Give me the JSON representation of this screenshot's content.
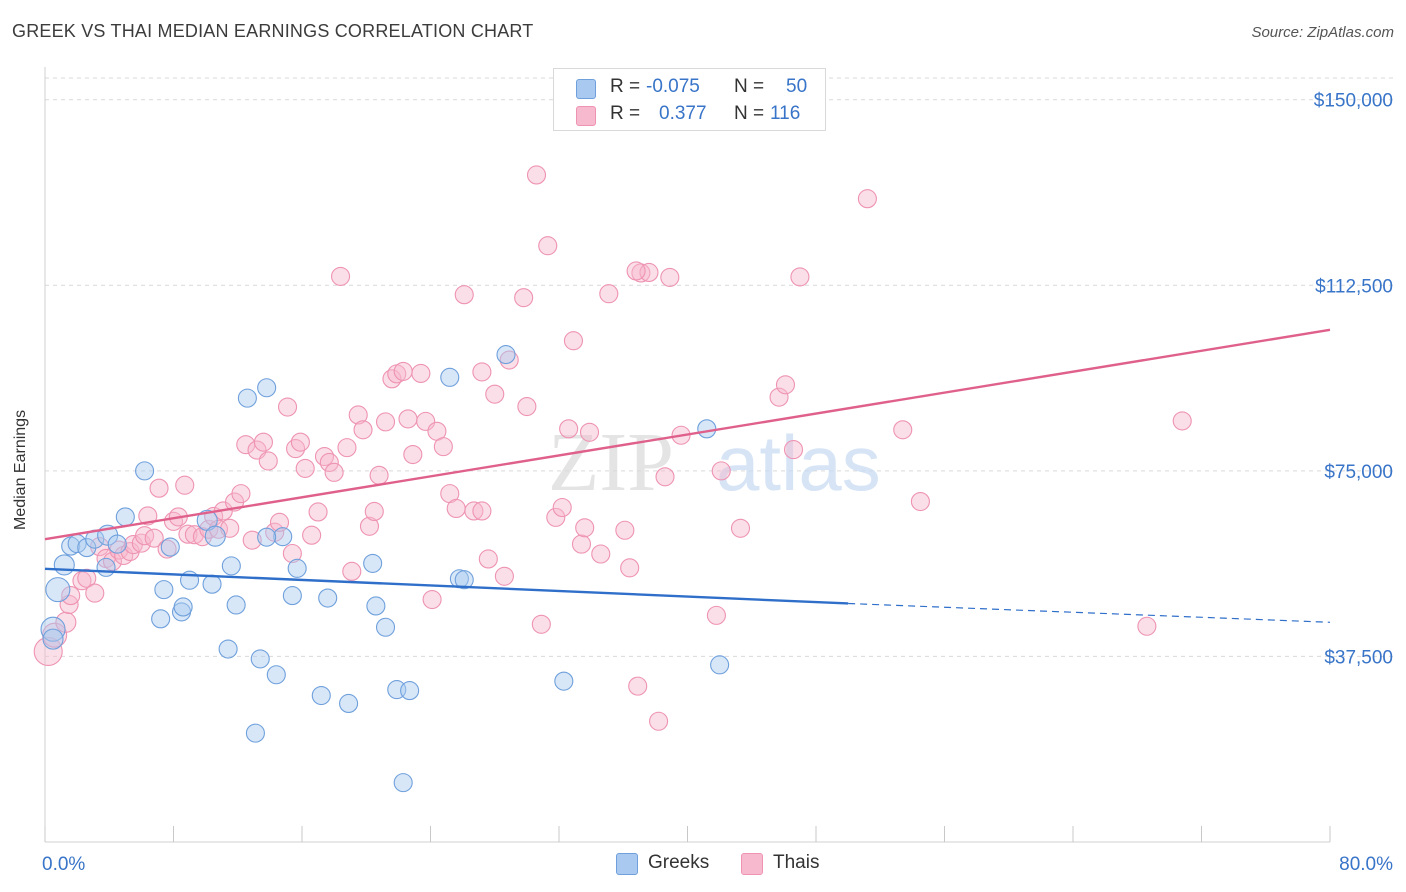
{
  "header": {
    "title": "GREEK VS THAI MEDIAN EARNINGS CORRELATION CHART",
    "source": "Source: ZipAtlas.com"
  },
  "watermark": {
    "part1": "ZIP",
    "part2": "atlas"
  },
  "legend_top": {
    "rows": [
      {
        "r_label": "R =",
        "r_value": "-0.075",
        "n_label": "N =",
        "n_value": "50",
        "color": "#a9c9f0"
      },
      {
        "r_label": "R =",
        "r_value": "0.377",
        "n_label": "N =",
        "n_value": "116",
        "color": "#f7b9cd"
      }
    ]
  },
  "legend_bottom": {
    "items": [
      {
        "label": "Greeks",
        "color": "#a9c9f0"
      },
      {
        "label": "Thais",
        "color": "#f7b9cd"
      }
    ]
  },
  "colors": {
    "greeks_fill": "#a9c9f0",
    "greeks_stroke": "#6fa0dc",
    "greeks_line": "#2f6fca",
    "thais_fill": "#f7b9cd",
    "thais_stroke": "#ee93b2",
    "thais_line": "#e0608c",
    "axis_text": "#3874c8",
    "grid": "#d9d9d9"
  },
  "chart_data": {
    "type": "scatter",
    "title": "GREEK VS THAI MEDIAN EARNINGS CORRELATION CHART",
    "xlabel": "",
    "ylabel": "Median Earnings",
    "xlim": [
      0,
      80
    ],
    "ylim": [
      0,
      155000
    ],
    "x_tick_labels": [
      "0.0%",
      "80.0%"
    ],
    "y_ticks": [
      37500,
      75000,
      112500,
      150000
    ],
    "y_tick_labels": [
      "$37,500",
      "$75,000",
      "$112,500",
      "$150,000"
    ],
    "grid": true,
    "legend_position": "bottom",
    "series": [
      {
        "name": "Greeks",
        "r": -0.075,
        "n": 50,
        "trend": {
          "x_start": 0,
          "y_start": 55200,
          "x_solid_end": 50,
          "y_solid_end": 48200,
          "x_end": 80,
          "y_end": 44400
        },
        "points": [
          [
            0.5,
            43000,
            10
          ],
          [
            0.5,
            41000,
            8
          ],
          [
            0.8,
            51000,
            10
          ],
          [
            1.2,
            56000,
            8
          ],
          [
            1.6,
            59800,
            7
          ],
          [
            2.0,
            60300,
            7
          ],
          [
            2.6,
            59500,
            7
          ],
          [
            3.1,
            61200,
            7
          ],
          [
            3.8,
            55500,
            7
          ],
          [
            3.9,
            62000,
            8
          ],
          [
            4.5,
            60200,
            7
          ],
          [
            5.0,
            65700,
            7
          ],
          [
            6.2,
            75000,
            7
          ],
          [
            7.2,
            45100,
            7
          ],
          [
            7.4,
            51000,
            7
          ],
          [
            7.8,
            59600,
            7
          ],
          [
            8.5,
            46500,
            7
          ],
          [
            8.6,
            47500,
            7
          ],
          [
            9.0,
            52900,
            7
          ],
          [
            10.1,
            65000,
            8
          ],
          [
            10.4,
            52100,
            7
          ],
          [
            10.6,
            61800,
            8
          ],
          [
            11.4,
            39000,
            7
          ],
          [
            11.6,
            55800,
            7
          ],
          [
            11.9,
            47900,
            7
          ],
          [
            12.6,
            89700,
            7
          ],
          [
            13.1,
            22000,
            7
          ],
          [
            13.4,
            37000,
            7
          ],
          [
            13.8,
            91800,
            7
          ],
          [
            14.4,
            33800,
            7
          ],
          [
            14.8,
            61700,
            7
          ],
          [
            15.4,
            49800,
            7
          ],
          [
            15.7,
            55300,
            7
          ],
          [
            17.2,
            29600,
            7
          ],
          [
            17.6,
            49300,
            7
          ],
          [
            18.9,
            28000,
            7
          ],
          [
            20.4,
            56300,
            7
          ],
          [
            20.6,
            47700,
            7
          ],
          [
            21.2,
            43400,
            7
          ],
          [
            21.9,
            30800,
            7
          ],
          [
            22.3,
            12000,
            7
          ],
          [
            22.7,
            30600,
            7
          ],
          [
            25.2,
            93900,
            7
          ],
          [
            25.8,
            53200,
            7
          ],
          [
            26.1,
            53000,
            7
          ],
          [
            28.7,
            98500,
            7
          ],
          [
            32.3,
            32500,
            7
          ],
          [
            41.2,
            83500,
            7
          ],
          [
            42.0,
            35800,
            7
          ],
          [
            13.8,
            61600,
            7
          ]
        ]
      },
      {
        "name": "Thais",
        "r": 0.377,
        "n": 116,
        "trend": {
          "x_start": 0,
          "y_start": 61200,
          "x_end": 80,
          "y_end": 103500
        },
        "points": [
          [
            0.2,
            38500,
            12
          ],
          [
            0.6,
            41800,
            10
          ],
          [
            1.3,
            44400,
            8
          ],
          [
            1.5,
            48000,
            7
          ],
          [
            1.6,
            49800,
            7
          ],
          [
            2.3,
            52800,
            7
          ],
          [
            2.6,
            53300,
            7
          ],
          [
            3.1,
            50300,
            7
          ],
          [
            3.4,
            59700,
            7
          ],
          [
            3.8,
            57300,
            7
          ],
          [
            4.2,
            56700,
            7
          ],
          [
            4.6,
            59000,
            7
          ],
          [
            4.9,
            57900,
            7
          ],
          [
            5.3,
            58700,
            7
          ],
          [
            5.5,
            60100,
            7
          ],
          [
            6.0,
            60400,
            7
          ],
          [
            6.2,
            61900,
            7
          ],
          [
            6.4,
            65900,
            7
          ],
          [
            6.8,
            61400,
            7
          ],
          [
            7.1,
            71500,
            7
          ],
          [
            7.6,
            59200,
            7
          ],
          [
            8.0,
            64800,
            7
          ],
          [
            8.3,
            65700,
            7
          ],
          [
            8.7,
            72100,
            7
          ],
          [
            8.9,
            62200,
            7
          ],
          [
            9.3,
            62100,
            7
          ],
          [
            9.8,
            61700,
            7
          ],
          [
            10.2,
            63200,
            7
          ],
          [
            10.5,
            65800,
            7
          ],
          [
            10.8,
            63200,
            7
          ],
          [
            11.1,
            66900,
            7
          ],
          [
            11.5,
            63400,
            7
          ],
          [
            11.8,
            68700,
            7
          ],
          [
            12.2,
            70400,
            7
          ],
          [
            12.5,
            80300,
            7
          ],
          [
            12.9,
            61000,
            7
          ],
          [
            13.2,
            79200,
            7
          ],
          [
            13.6,
            80800,
            7
          ],
          [
            13.9,
            77000,
            7
          ],
          [
            14.3,
            62600,
            7
          ],
          [
            14.6,
            64600,
            7
          ],
          [
            15.1,
            87900,
            7
          ],
          [
            15.4,
            58300,
            7
          ],
          [
            15.6,
            79500,
            7
          ],
          [
            15.9,
            80800,
            7
          ],
          [
            16.2,
            75500,
            7
          ],
          [
            16.6,
            62000,
            7
          ],
          [
            17.0,
            66700,
            7
          ],
          [
            17.4,
            77900,
            7
          ],
          [
            17.7,
            76700,
            7
          ],
          [
            18.0,
            74700,
            7
          ],
          [
            18.4,
            114300,
            7
          ],
          [
            18.8,
            79700,
            7
          ],
          [
            19.1,
            54700,
            7
          ],
          [
            19.5,
            86300,
            7
          ],
          [
            19.8,
            83300,
            7
          ],
          [
            20.2,
            63800,
            7
          ],
          [
            20.5,
            66800,
            7
          ],
          [
            20.8,
            74100,
            7
          ],
          [
            21.2,
            84900,
            7
          ],
          [
            21.6,
            93600,
            7
          ],
          [
            21.9,
            94600,
            7
          ],
          [
            22.3,
            95100,
            7
          ],
          [
            22.6,
            85500,
            7
          ],
          [
            22.9,
            78300,
            7
          ],
          [
            23.4,
            94700,
            7
          ],
          [
            23.7,
            85000,
            7
          ],
          [
            24.1,
            49000,
            7
          ],
          [
            24.4,
            83000,
            7
          ],
          [
            24.8,
            79900,
            7
          ],
          [
            25.2,
            70400,
            7
          ],
          [
            25.6,
            67400,
            7
          ],
          [
            26.1,
            110600,
            7
          ],
          [
            26.7,
            66900,
            7
          ],
          [
            27.2,
            95000,
            7
          ],
          [
            27.6,
            57200,
            7
          ],
          [
            28.0,
            90500,
            7
          ],
          [
            28.6,
            53700,
            7
          ],
          [
            28.9,
            97400,
            7
          ],
          [
            29.8,
            110000,
            7
          ],
          [
            30.0,
            88000,
            7
          ],
          [
            30.6,
            134800,
            7
          ],
          [
            30.9,
            44000,
            7
          ],
          [
            31.3,
            120500,
            7
          ],
          [
            31.8,
            65600,
            7
          ],
          [
            32.2,
            67600,
            7
          ],
          [
            32.6,
            83500,
            7
          ],
          [
            32.9,
            101300,
            7
          ],
          [
            33.4,
            60200,
            7
          ],
          [
            33.6,
            63500,
            7
          ],
          [
            33.9,
            82800,
            7
          ],
          [
            34.6,
            58200,
            7
          ],
          [
            35.1,
            110800,
            7
          ],
          [
            36.1,
            63000,
            7
          ],
          [
            36.4,
            55400,
            7
          ],
          [
            36.9,
            31500,
            7
          ],
          [
            37.1,
            115000,
            7
          ],
          [
            37.6,
            115100,
            7
          ],
          [
            38.2,
            24400,
            7
          ],
          [
            38.6,
            73800,
            7
          ],
          [
            38.9,
            114100,
            7
          ],
          [
            39.6,
            82200,
            7
          ],
          [
            41.8,
            45800,
            7
          ],
          [
            43.3,
            63400,
            7
          ],
          [
            45.7,
            89900,
            7
          ],
          [
            46.1,
            92400,
            7
          ],
          [
            46.6,
            79300,
            7
          ],
          [
            47.0,
            114200,
            7
          ],
          [
            51.2,
            130000,
            7
          ],
          [
            53.4,
            83300,
            7
          ],
          [
            54.5,
            68800,
            7
          ],
          [
            68.6,
            43600,
            7
          ],
          [
            70.8,
            85100,
            7
          ],
          [
            42.1,
            75000,
            7
          ],
          [
            36.8,
            115400,
            7
          ],
          [
            27.2,
            66900,
            7
          ]
        ]
      }
    ]
  }
}
